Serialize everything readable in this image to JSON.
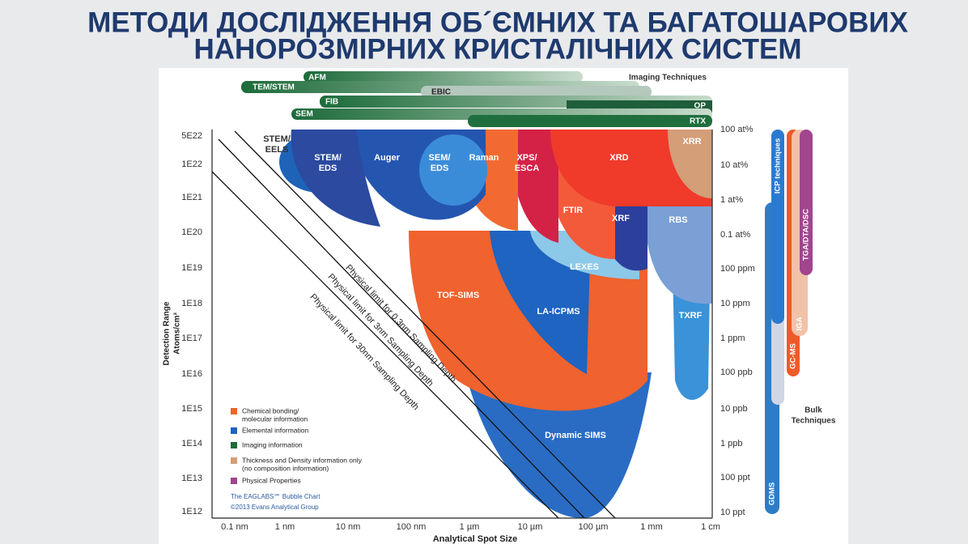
{
  "title": [
    "МЕТОДИ ДОСЛІДЖЕННЯ ОБ´ЄМНИХ ТА БАГАТОШАРОВИХ",
    "НАНОРОЗМІРНИХ КРИСТАЛІЧНИХ СИСТЕМ"
  ],
  "chart": {
    "imaging_title": "Imaging Techniques",
    "imaging": [
      "AFM",
      "TEM/STEM",
      "EBIC",
      "FIB",
      "OP",
      "SEM",
      "RTX"
    ],
    "y_ticks_left": [
      "5E22",
      "1E22",
      "1E21",
      "1E20",
      "1E19",
      "1E18",
      "1E17",
      "1E16",
      "1E15",
      "1E14",
      "1E13",
      "1E12"
    ],
    "y_ticks_right": [
      "100 at%",
      "10 at%",
      "1 at%",
      "0.1 at%",
      "100 ppm",
      "10 ppm",
      "1 ppm",
      "100 ppb",
      "10 ppb",
      "1 ppb",
      "100 ppt",
      "10 ppt"
    ],
    "x_ticks": [
      "0.1 nm",
      "1 nm",
      "10 nm",
      "100 nm",
      "1 µm",
      "10 µm",
      "100 µm",
      "1 mm",
      "1 cm"
    ],
    "y_axis_label": [
      "Detection Range",
      "Atoms/cm³"
    ],
    "x_axis_label": "Analytical Spot Size",
    "regions": [
      [
        "STEM/",
        "EELS"
      ],
      [
        "STEM/",
        "EDS"
      ],
      [
        "Auger"
      ],
      [
        "SEM/",
        "EDS"
      ],
      [
        "Raman"
      ],
      [
        "XPS/",
        "ESCA"
      ],
      [
        "XRD"
      ],
      [
        "XRR"
      ],
      [
        "FTIR"
      ],
      [
        "XRF"
      ],
      [
        "RBS"
      ],
      [
        "LEXES"
      ],
      [
        "TOF-SIMS"
      ],
      [
        "LA-ICPMS"
      ],
      [
        "TXRF"
      ],
      [
        "Dynamic SIMS"
      ]
    ],
    "limits": [
      "Physical limit for 0.3nm Sampling Depth",
      "Physical limit for 3nm Sampling Depth",
      "Physical limit for 30nm Sampling Depth"
    ],
    "legend": [
      [
        "Chemical bonding/",
        "molecular information"
      ],
      [
        "Elemental information"
      ],
      [
        "Imaging information"
      ],
      [
        "Thickness and Density information only",
        "(no composition information)"
      ],
      [
        "Physical Properties"
      ]
    ],
    "credit": [
      "The EAGLABS℠ Bubble Chart",
      "©2013 Evans Analytical Group"
    ],
    "bulk_title": [
      "Bulk",
      "Techniques"
    ],
    "bulk": [
      "ICP techniques",
      "GC-MS",
      "IGA",
      "TGA/DTA/DSC",
      "GDMS"
    ]
  }
}
